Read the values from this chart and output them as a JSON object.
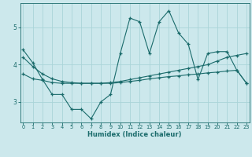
{
  "xlabel": "Humidex (Indice chaleur)",
  "bg_color": "#cce8ec",
  "line_color": "#1a6b6b",
  "grid_color": "#aad4d8",
  "x_ticks": [
    0,
    1,
    2,
    3,
    4,
    5,
    6,
    7,
    8,
    9,
    10,
    11,
    12,
    13,
    14,
    15,
    16,
    17,
    18,
    19,
    20,
    21,
    22,
    23
  ],
  "y_ticks": [
    3,
    4,
    5
  ],
  "xlim": [
    -0.3,
    23.3
  ],
  "ylim": [
    2.45,
    5.65
  ],
  "series1_x": [
    0,
    1,
    2,
    3,
    4,
    5,
    6,
    7,
    8,
    9,
    10,
    11,
    12,
    13,
    14,
    15,
    16,
    17,
    18,
    19,
    20,
    21,
    22,
    23
  ],
  "series1_y": [
    4.4,
    4.05,
    3.6,
    3.2,
    3.2,
    2.8,
    2.8,
    2.55,
    3.0,
    3.2,
    4.3,
    5.25,
    5.15,
    4.3,
    5.15,
    5.45,
    4.85,
    4.55,
    3.6,
    4.3,
    4.35,
    4.35,
    3.85,
    3.5
  ],
  "series2_x": [
    0,
    1,
    2,
    3,
    4,
    5,
    6,
    7,
    8,
    9,
    10,
    11,
    12,
    13,
    14,
    15,
    16,
    17,
    18,
    19,
    20,
    21,
    22,
    23
  ],
  "series2_y": [
    3.75,
    3.62,
    3.58,
    3.52,
    3.5,
    3.5,
    3.5,
    3.5,
    3.5,
    3.52,
    3.55,
    3.6,
    3.65,
    3.7,
    3.75,
    3.8,
    3.85,
    3.9,
    3.95,
    4.0,
    4.1,
    4.2,
    4.25,
    4.3
  ],
  "series3_x": [
    0,
    1,
    2,
    3,
    4,
    5,
    6,
    7,
    8,
    9,
    10,
    11,
    12,
    13,
    14,
    15,
    16,
    17,
    18,
    19,
    20,
    21,
    22,
    23
  ],
  "series3_y": [
    4.2,
    3.95,
    3.75,
    3.62,
    3.55,
    3.52,
    3.5,
    3.5,
    3.5,
    3.5,
    3.52,
    3.55,
    3.58,
    3.62,
    3.65,
    3.68,
    3.7,
    3.73,
    3.75,
    3.78,
    3.8,
    3.83,
    3.85,
    3.5
  ]
}
